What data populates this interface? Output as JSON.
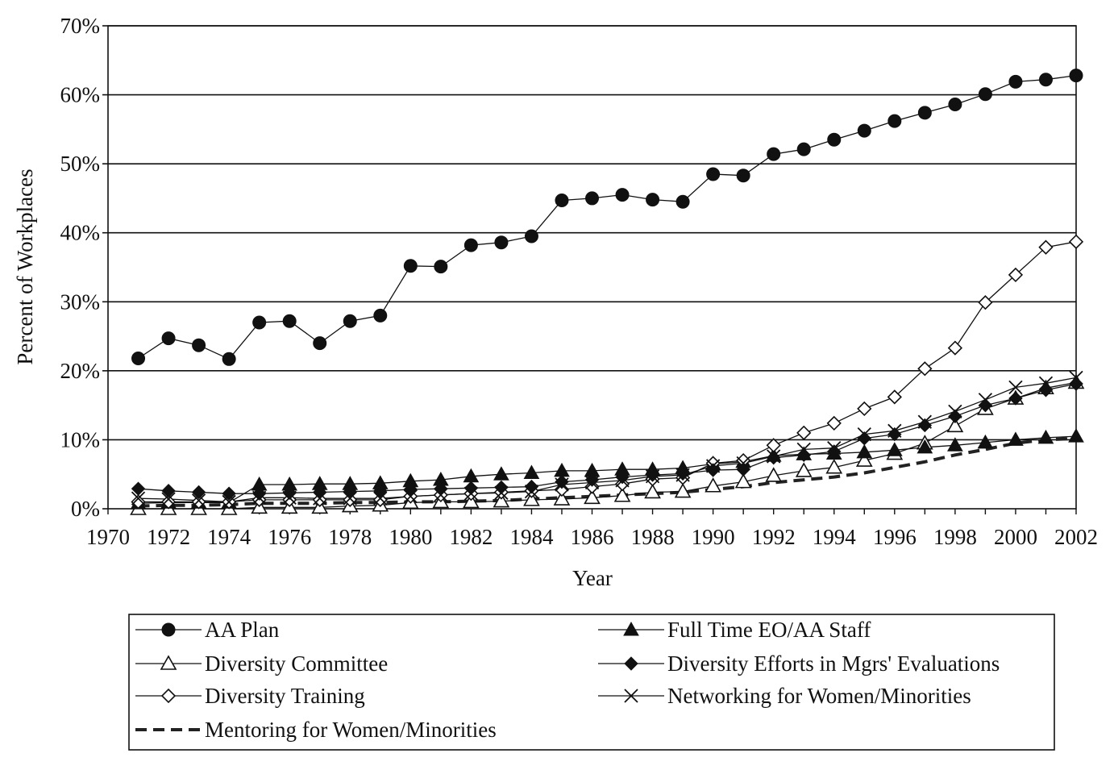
{
  "chart_data": {
    "type": "line",
    "title": "",
    "xlabel": "Year",
    "ylabel": "Percent of Workplaces",
    "xlim": [
      1970,
      2002
    ],
    "ylim": [
      0,
      70
    ],
    "grid": "horizontal",
    "legend_position": "bottom",
    "x_ticks": [
      "1970",
      "1972",
      "1974",
      "1976",
      "1978",
      "1980",
      "1982",
      "1984",
      "1986",
      "1988",
      "1990",
      "1992",
      "1994",
      "1996",
      "1998",
      "2000",
      "2002"
    ],
    "y_ticks": [
      "0%",
      "10%",
      "20%",
      "30%",
      "40%",
      "50%",
      "60%",
      "70%"
    ],
    "x": [
      1971,
      1972,
      1973,
      1974,
      1975,
      1976,
      1977,
      1978,
      1979,
      1980,
      1981,
      1982,
      1983,
      1984,
      1985,
      1986,
      1987,
      1988,
      1989,
      1990,
      1991,
      1992,
      1993,
      1994,
      1995,
      1996,
      1997,
      1998,
      1999,
      2000,
      2001,
      2002
    ],
    "series": [
      {
        "name": "AA Plan",
        "marker": "filled-circle",
        "line": "solid",
        "values": [
          21.8,
          24.7,
          23.7,
          21.7,
          27.0,
          27.2,
          24.0,
          27.2,
          28.0,
          35.2,
          35.1,
          38.2,
          38.6,
          39.5,
          44.7,
          45.0,
          45.5,
          44.8,
          44.5,
          48.5,
          48.3,
          51.4,
          52.1,
          53.5,
          54.8,
          56.2,
          57.4,
          58.6,
          60.1,
          61.9,
          62.2,
          62.8
        ]
      },
      {
        "name": "Full Time EO/AA Staff",
        "marker": "filled-triangle",
        "line": "solid",
        "values": [
          0.8,
          0.9,
          0.9,
          0.9,
          3.5,
          3.5,
          3.6,
          3.6,
          3.7,
          4.0,
          4.2,
          4.7,
          5.0,
          5.2,
          5.5,
          5.5,
          5.7,
          5.7,
          5.9,
          6.5,
          6.8,
          7.7,
          7.9,
          8.0,
          8.2,
          8.5,
          8.9,
          9.2,
          9.6,
          10.0,
          10.3,
          10.5
        ]
      },
      {
        "name": "Diversity Committee",
        "marker": "open-triangle",
        "line": "solid",
        "values": [
          0.0,
          0.0,
          0.0,
          0.0,
          0.2,
          0.2,
          0.2,
          0.4,
          0.5,
          0.9,
          1.0,
          1.0,
          1.1,
          1.3,
          1.4,
          1.6,
          1.9,
          2.4,
          2.5,
          3.3,
          3.9,
          4.8,
          5.5,
          6.0,
          7.0,
          8.0,
          9.5,
          12.0,
          14.5,
          16.0,
          17.5,
          18.3
        ]
      },
      {
        "name": "Diversity Efforts in Mgrs' Evaluations",
        "marker": "filled-diamond",
        "line": "solid",
        "values": [
          2.9,
          2.6,
          2.4,
          2.2,
          2.2,
          2.3,
          2.4,
          2.5,
          2.6,
          2.8,
          2.9,
          3.0,
          3.1,
          3.2,
          3.9,
          4.2,
          4.6,
          4.9,
          5.1,
          5.6,
          5.7,
          7.4,
          7.8,
          8.3,
          10.2,
          10.8,
          12.1,
          13.4,
          15.0,
          16.0,
          17.2,
          18.1
        ]
      },
      {
        "name": "Diversity Training",
        "marker": "open-diamond",
        "line": "solid",
        "values": [
          1.0,
          1.0,
          1.0,
          1.0,
          1.3,
          1.3,
          1.3,
          1.3,
          1.3,
          1.8,
          2.0,
          2.2,
          2.4,
          2.6,
          2.8,
          3.2,
          3.6,
          4.3,
          4.5,
          6.6,
          7.0,
          9.2,
          11.0,
          12.4,
          14.5,
          16.2,
          20.3,
          23.3,
          29.9,
          33.9,
          37.9,
          38.7
        ]
      },
      {
        "name": "Networking for Women/Minorities",
        "marker": "x-cross",
        "line": "solid",
        "values": [
          1.5,
          1.4,
          1.2,
          1.0,
          1.6,
          1.6,
          1.5,
          1.5,
          1.5,
          1.8,
          2.0,
          2.2,
          2.3,
          2.5,
          3.5,
          3.8,
          4.1,
          4.7,
          4.9,
          6.2,
          6.6,
          7.6,
          8.6,
          8.8,
          10.8,
          11.3,
          12.6,
          14.1,
          15.8,
          17.6,
          18.2,
          19.0
        ]
      },
      {
        "name": "Mentoring for Women/Minorities",
        "marker": "none",
        "line": "dashed",
        "values": [
          0.4,
          0.5,
          0.5,
          0.6,
          0.8,
          0.8,
          0.8,
          0.9,
          0.9,
          1.0,
          1.0,
          1.1,
          1.2,
          1.4,
          1.6,
          1.8,
          2.0,
          2.2,
          2.4,
          2.8,
          3.2,
          3.8,
          4.2,
          4.6,
          5.2,
          6.0,
          6.8,
          7.8,
          8.6,
          9.5,
          10.0,
          10.2
        ]
      }
    ]
  }
}
